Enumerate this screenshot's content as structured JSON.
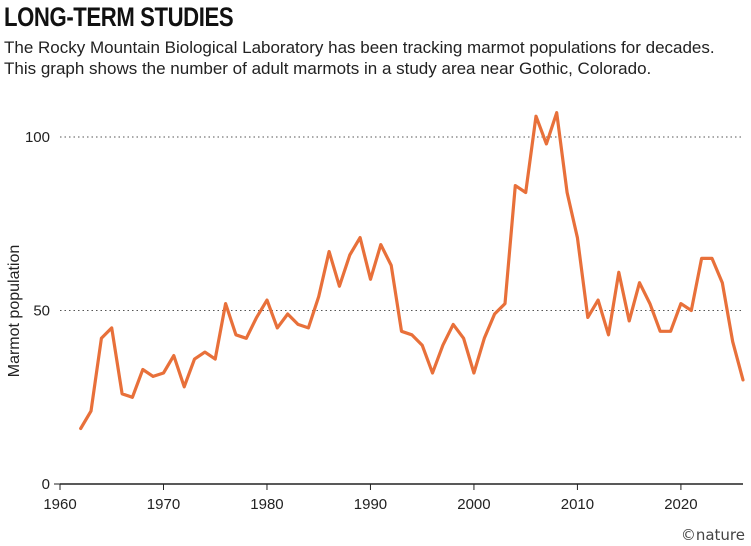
{
  "header": {
    "title": "LONG-TERM STUDIES",
    "subtitle": "The Rocky Mountain Biological Laboratory has been tracking marmot populations for decades. This graph shows the number of adult marmots in a study area near Gothic, Colorado."
  },
  "credit": "©nature",
  "colors": {
    "line": "#e8703a",
    "grid": "#555555",
    "axis": "#222222"
  },
  "chart_data": {
    "type": "line",
    "title": "LONG-TERM STUDIES",
    "xlabel": "",
    "ylabel": "Marmot population",
    "xlim": [
      1960,
      2026
    ],
    "ylim": [
      0,
      110
    ],
    "xticks": [
      1960,
      1970,
      1980,
      1990,
      2000,
      2010,
      2020
    ],
    "yticks": [
      0,
      50,
      100
    ],
    "grid": "horizontal dotted at 50 and 100",
    "series": [
      {
        "x": [
          1962,
          1963,
          1964,
          1965,
          1966,
          1967,
          1968,
          1969,
          1970,
          1971,
          1972,
          1973,
          1974,
          1975,
          1976,
          1977,
          1978,
          1979,
          1980,
          1981,
          1982,
          1983,
          1984,
          1985,
          1986,
          1987,
          1988,
          1989,
          1990,
          1991,
          1992,
          1993,
          1994,
          1995,
          1996,
          1997,
          1998,
          1999,
          2000,
          2001,
          2002,
          2003,
          2004,
          2005,
          2006,
          2007,
          2008,
          2009,
          2010,
          2011,
          2012,
          2013,
          2014,
          2015,
          2016,
          2017,
          2018,
          2019,
          2020,
          2021,
          2022,
          2023,
          2024,
          2025,
          2026
        ],
        "values": [
          16,
          21,
          42,
          45,
          26,
          25,
          33,
          31,
          32,
          37,
          28,
          36,
          38,
          36,
          52,
          43,
          42,
          48,
          53,
          45,
          49,
          46,
          45,
          54,
          67,
          57,
          66,
          71,
          59,
          69,
          63,
          44,
          43,
          40,
          32,
          40,
          46,
          42,
          32,
          42,
          49,
          52,
          86,
          84,
          106,
          98,
          107,
          84,
          71,
          48,
          53,
          43,
          61,
          47,
          58,
          52,
          44,
          44,
          52,
          50,
          65,
          65,
          58,
          41,
          30
        ]
      }
    ]
  }
}
